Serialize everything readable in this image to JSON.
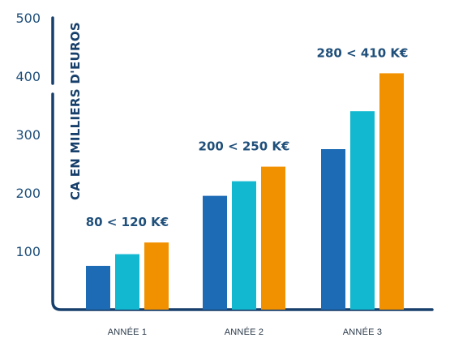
{
  "chart_data": {
    "type": "bar",
    "ylabel": "CA EN MILLIERS D'EUROS",
    "ylim": [
      0,
      500
    ],
    "yticks": [
      100,
      200,
      300,
      400,
      500
    ],
    "grid": false,
    "categories": [
      "ANNÉE 1",
      "ANNÉE 2",
      "ANNÉE 3"
    ],
    "series": [
      {
        "values": [
          75,
          195,
          275
        ],
        "color": "#1d6bb5"
      },
      {
        "values": [
          95,
          220,
          340
        ],
        "color": "#12b8d0"
      },
      {
        "values": [
          115,
          245,
          405
        ],
        "color": "#f29100"
      }
    ],
    "annotations": [
      "80 < 120 K€",
      "200 < 250 K€",
      "280 < 410 K€"
    ],
    "axis_color": "#173f6b"
  }
}
